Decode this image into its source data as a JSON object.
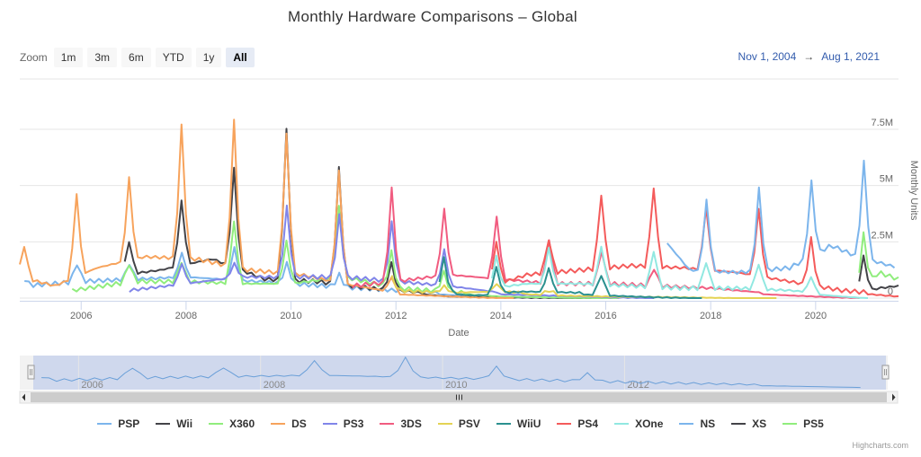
{
  "title": "Monthly Hardware Comparisons – Global",
  "zoom": {
    "label": "Zoom",
    "buttons": [
      "1m",
      "3m",
      "6m",
      "YTD",
      "1y",
      "All"
    ],
    "active": "All"
  },
  "range": {
    "from": "Nov 1, 2004",
    "arrow": "→",
    "to": "Aug 1, 2021"
  },
  "credits": "Highcharts.com",
  "chart_data": {
    "type": "line",
    "title": "Monthly Hardware Comparisons – Global",
    "xlabel": "Date",
    "ylabel": "Monthly Units",
    "xlim": [
      2004.83,
      2021.58
    ],
    "ylim": [
      0,
      7500000
    ],
    "yticks": [
      0,
      2500000,
      5000000,
      7500000
    ],
    "ytick_labels": [
      "0",
      "2.5M",
      "5M",
      "7.5M"
    ],
    "xticks": [
      2006,
      2008,
      2010,
      2012,
      2014,
      2016,
      2018,
      2020
    ],
    "xtick_labels": [
      "2006",
      "2008",
      "2010",
      "2012",
      "2014",
      "2016",
      "2018",
      "2020"
    ],
    "navigator_ticks": [
      "2006",
      "2008",
      "2010",
      "2012"
    ],
    "legend": "bottom",
    "series": [
      {
        "name": "PSP",
        "color": "#7cb5ec",
        "start": 2004.92,
        "end": 2014.0,
        "base": [
          [
            2004.92,
            0.5
          ],
          [
            2006,
            0.7
          ],
          [
            2008,
            0.9
          ],
          [
            2010,
            0.6
          ],
          [
            2012,
            0.3
          ],
          [
            2014,
            0.05
          ]
        ],
        "peaks": [
          [
            2004.92,
            0.8
          ],
          [
            2005.92,
            1.5
          ],
          [
            2006.92,
            1.5
          ],
          [
            2007.92,
            2.0
          ],
          [
            2008.92,
            2.2
          ],
          [
            2009.92,
            1.5
          ],
          [
            2010.92,
            1.0
          ]
        ]
      },
      {
        "name": "Wii",
        "color": "#434348",
        "start": 2006.83,
        "end": 2016.0,
        "base": [
          [
            2006.83,
            1.0
          ],
          [
            2007.5,
            1.2
          ],
          [
            2008.5,
            1.7
          ],
          [
            2009.5,
            0.8
          ],
          [
            2010.5,
            0.7
          ],
          [
            2011.5,
            0.4
          ],
          [
            2013,
            0.1
          ],
          [
            2016,
            0.0
          ]
        ],
        "peaks": [
          [
            2006.92,
            2.5
          ],
          [
            2007.92,
            4.3
          ],
          [
            2008.92,
            5.7
          ],
          [
            2009.92,
            7.4
          ],
          [
            2010.92,
            5.7
          ],
          [
            2011.92,
            1.5
          ]
        ]
      },
      {
        "name": "X360",
        "color": "#90ed7d",
        "start": 2005.83,
        "end": 2016.3,
        "base": [
          [
            2005.83,
            0.3
          ],
          [
            2007,
            0.7
          ],
          [
            2008,
            0.7
          ],
          [
            2009,
            0.6
          ],
          [
            2010,
            0.6
          ],
          [
            2011,
            0.9
          ],
          [
            2012,
            0.4
          ],
          [
            2014,
            0.1
          ],
          [
            2016,
            0.02
          ]
        ],
        "peaks": [
          [
            2006.92,
            1.5
          ],
          [
            2007.92,
            1.6
          ],
          [
            2008.92,
            3.4
          ],
          [
            2009.92,
            2.5
          ],
          [
            2010.92,
            4.0
          ],
          [
            2011.92,
            2.0
          ],
          [
            2012.92,
            1.1
          ]
        ]
      },
      {
        "name": "DS",
        "color": "#f7a35c",
        "start": 2004.83,
        "end": 2014.3,
        "base": [
          [
            2004.83,
            0.9
          ],
          [
            2005.5,
            0.5
          ],
          [
            2006.3,
            1.3
          ],
          [
            2007.2,
            1.8
          ],
          [
            2008.2,
            1.7
          ],
          [
            2009.2,
            1.2
          ],
          [
            2010.2,
            1.0
          ],
          [
            2011,
            0.6
          ],
          [
            2012,
            0.2
          ],
          [
            2014,
            0.02
          ]
        ],
        "peaks": [
          [
            2004.92,
            2.3
          ],
          [
            2005.92,
            4.6
          ],
          [
            2006.92,
            5.3
          ],
          [
            2007.92,
            7.6
          ],
          [
            2008.92,
            7.8
          ],
          [
            2009.92,
            7.2
          ],
          [
            2010.92,
            5.6
          ],
          [
            2011.92,
            0.9
          ]
        ]
      },
      {
        "name": "PS3",
        "color": "#8085e9",
        "start": 2006.92,
        "end": 2017.0,
        "base": [
          [
            2006.92,
            0.3
          ],
          [
            2008,
            0.6
          ],
          [
            2009,
            0.9
          ],
          [
            2010,
            0.9
          ],
          [
            2011,
            0.9
          ],
          [
            2012,
            0.7
          ],
          [
            2013,
            0.5
          ],
          [
            2014,
            0.2
          ],
          [
            2017,
            0.01
          ]
        ],
        "peaks": [
          [
            2007.92,
            1.5
          ],
          [
            2008.92,
            1.5
          ],
          [
            2009.92,
            4.0
          ],
          [
            2010.92,
            3.6
          ],
          [
            2011.92,
            3.3
          ],
          [
            2012.92,
            2.1
          ]
        ]
      },
      {
        "name": "3DS",
        "color": "#f15c80",
        "start": 2011.17,
        "end": 2020.9,
        "base": [
          [
            2011.17,
            0.5
          ],
          [
            2012,
            0.7
          ],
          [
            2013,
            1.0
          ],
          [
            2014,
            0.8
          ],
          [
            2015,
            0.6
          ],
          [
            2016,
            0.6
          ],
          [
            2017,
            0.5
          ],
          [
            2018,
            0.4
          ],
          [
            2019,
            0.2
          ],
          [
            2020,
            0.1
          ],
          [
            2020.9,
            0.02
          ]
        ],
        "peaks": [
          [
            2011.92,
            4.8
          ],
          [
            2012.92,
            3.9
          ],
          [
            2013.92,
            3.6
          ],
          [
            2014.92,
            2.6
          ],
          [
            2015.92,
            2.1
          ],
          [
            2016.92,
            1.3
          ]
        ]
      },
      {
        "name": "PSV",
        "color": "#e4d354",
        "start": 2011.92,
        "end": 2019.3,
        "base": [
          [
            2011.92,
            0.3
          ],
          [
            2013,
            0.2
          ],
          [
            2014,
            0.25
          ],
          [
            2015,
            0.15
          ],
          [
            2016,
            0.1
          ],
          [
            2017,
            0.08
          ],
          [
            2019.3,
            0.0
          ]
        ],
        "peaks": [
          [
            2011.92,
            0.9
          ],
          [
            2012.92,
            0.5
          ],
          [
            2013.92,
            0.6
          ],
          [
            2014.92,
            0.3
          ]
        ]
      },
      {
        "name": "WiiU",
        "color": "#2b908f",
        "start": 2012.83,
        "end": 2017.9,
        "base": [
          [
            2012.83,
            0.25
          ],
          [
            2013.5,
            0.15
          ],
          [
            2014.5,
            0.25
          ],
          [
            2015.5,
            0.2
          ],
          [
            2016.5,
            0.1
          ],
          [
            2017.9,
            0.0
          ]
        ],
        "peaks": [
          [
            2012.92,
            1.7
          ],
          [
            2013.92,
            1.3
          ],
          [
            2014.92,
            1.3
          ],
          [
            2015.92,
            1.0
          ]
        ]
      },
      {
        "name": "PS4",
        "color": "#f45b5b",
        "start": 2013.83,
        "end": 2021.58,
        "base": [
          [
            2013.83,
            0.5
          ],
          [
            2014.5,
            1.0
          ],
          [
            2015.5,
            1.2
          ],
          [
            2016.5,
            1.4
          ],
          [
            2017.5,
            1.3
          ],
          [
            2018.5,
            1.1
          ],
          [
            2019.5,
            0.7
          ],
          [
            2020.5,
            0.3
          ],
          [
            2021.58,
            0.1
          ]
        ],
        "peaks": [
          [
            2013.92,
            2.5
          ],
          [
            2014.92,
            2.6
          ],
          [
            2015.92,
            4.6
          ],
          [
            2016.92,
            4.9
          ],
          [
            2017.92,
            4.0
          ],
          [
            2018.92,
            3.9
          ],
          [
            2019.92,
            2.6
          ]
        ]
      },
      {
        "name": "XOne",
        "color": "#91e8e1",
        "start": 2013.83,
        "end": 2021.0,
        "base": [
          [
            2013.83,
            0.4
          ],
          [
            2014.5,
            0.6
          ],
          [
            2015.5,
            0.6
          ],
          [
            2016.5,
            0.5
          ],
          [
            2017.5,
            0.4
          ],
          [
            2018.5,
            0.4
          ],
          [
            2019.5,
            0.3
          ],
          [
            2020.5,
            0.1
          ],
          [
            2021,
            0.02
          ]
        ],
        "peaks": [
          [
            2013.92,
            1.8
          ],
          [
            2014.92,
            2.2
          ],
          [
            2015.92,
            2.3
          ],
          [
            2016.92,
            2.1
          ],
          [
            2017.92,
            1.6
          ],
          [
            2018.92,
            1.5
          ],
          [
            2019.92,
            0.9
          ]
        ]
      },
      {
        "name": "NS",
        "color": "#7cb5ec",
        "start": 2017.17,
        "end": 2021.58,
        "base": [
          [
            2017.17,
            2.4
          ],
          [
            2017.6,
            1.2
          ],
          [
            2018.5,
            1.1
          ],
          [
            2019.5,
            1.3
          ],
          [
            2020.3,
            2.3
          ],
          [
            2020.8,
            1.8
          ],
          [
            2021.58,
            1.3
          ]
        ],
        "peaks": [
          [
            2017.92,
            4.3
          ],
          [
            2018.92,
            4.8
          ],
          [
            2019.92,
            5.1
          ],
          [
            2020.92,
            6.0
          ]
        ]
      },
      {
        "name": "XS",
        "color": "#434348",
        "start": 2020.83,
        "end": 2021.58,
        "base": [
          [
            2020.83,
            0.2
          ],
          [
            2021.2,
            0.4
          ],
          [
            2021.58,
            0.5
          ]
        ],
        "peaks": [
          [
            2020.92,
            1.8
          ]
        ]
      },
      {
        "name": "PS5",
        "color": "#90ed7d",
        "start": 2020.83,
        "end": 2021.58,
        "base": [
          [
            2020.83,
            0.3
          ],
          [
            2021.2,
            1.1
          ],
          [
            2021.58,
            0.8
          ]
        ],
        "peaks": [
          [
            2020.92,
            2.8
          ]
        ]
      }
    ]
  }
}
